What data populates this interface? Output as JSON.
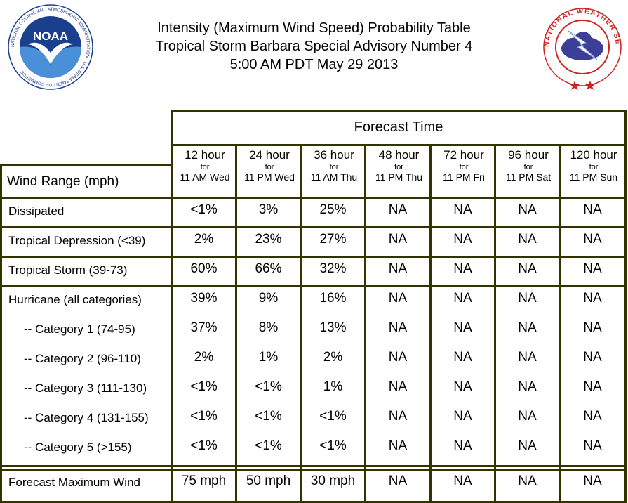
{
  "title": {
    "line1": "Intensity (Maximum Wind Speed) Probability Table",
    "line2": "Tropical Storm Barbara Special Advisory Number 4",
    "line3": "5:00 AM PDT May 29 2013"
  },
  "logos": {
    "noaa": {
      "text": "NOAA",
      "ring_text": "NATIONAL OCEANIC AND ATMOSPHERIC ADMINISTRATION · U.S. DEPARTMENT OF COMMERCE"
    },
    "nws": {
      "ring_text": "NATIONAL WEATHER SERVICE"
    }
  },
  "header": {
    "forecast_time": "Forecast Time",
    "wind_range": "Wind Range (mph)",
    "for_word": "for",
    "columns": [
      {
        "hours": "12 hour",
        "when": "11 AM Wed"
      },
      {
        "hours": "24 hour",
        "when": "11 PM Wed"
      },
      {
        "hours": "36 hour",
        "when": "11 AM Thu"
      },
      {
        "hours": "48 hour",
        "when": "11 PM Thu"
      },
      {
        "hours": "72 hour",
        "when": "11 PM Fri"
      },
      {
        "hours": "96 hour",
        "when": "11 PM Sat"
      },
      {
        "hours": "120 hour",
        "when": "11 PM Sun"
      }
    ]
  },
  "rows": [
    {
      "label": "Dissipated",
      "values": [
        "<1%",
        "3%",
        "25%",
        "NA",
        "NA",
        "NA",
        "NA"
      ]
    },
    {
      "label": "Tropical Depression (<39)",
      "values": [
        "2%",
        "23%",
        "27%",
        "NA",
        "NA",
        "NA",
        "NA"
      ]
    },
    {
      "label": "Tropical Storm (39-73)",
      "values": [
        "60%",
        "66%",
        "32%",
        "NA",
        "NA",
        "NA",
        "NA"
      ]
    },
    {
      "label": "Hurricane (all categories)",
      "values": [
        "39%",
        "9%",
        "16%",
        "NA",
        "NA",
        "NA",
        "NA"
      ]
    },
    {
      "label": "-- Category 1 (74-95)",
      "values": [
        "37%",
        "8%",
        "13%",
        "NA",
        "NA",
        "NA",
        "NA"
      ]
    },
    {
      "label": "-- Category 2 (96-110)",
      "values": [
        "2%",
        "1%",
        "2%",
        "NA",
        "NA",
        "NA",
        "NA"
      ]
    },
    {
      "label": "-- Category 3 (111-130)",
      "values": [
        "<1%",
        "<1%",
        "1%",
        "NA",
        "NA",
        "NA",
        "NA"
      ]
    },
    {
      "label": "-- Category 4 (131-155)",
      "values": [
        "<1%",
        "<1%",
        "<1%",
        "NA",
        "NA",
        "NA",
        "NA"
      ]
    },
    {
      "label": "-- Category 5 (>155)",
      "values": [
        "<1%",
        "<1%",
        "<1%",
        "NA",
        "NA",
        "NA",
        "NA"
      ]
    },
    {
      "label": "Forecast Maximum Wind",
      "values": [
        "75 mph",
        "50 mph",
        "30 mph",
        "NA",
        "NA",
        "NA",
        "NA"
      ]
    }
  ],
  "colors": {
    "border": "#333300",
    "noaa_blue": "#1a3f8f",
    "nws_red": "#cc2222"
  }
}
